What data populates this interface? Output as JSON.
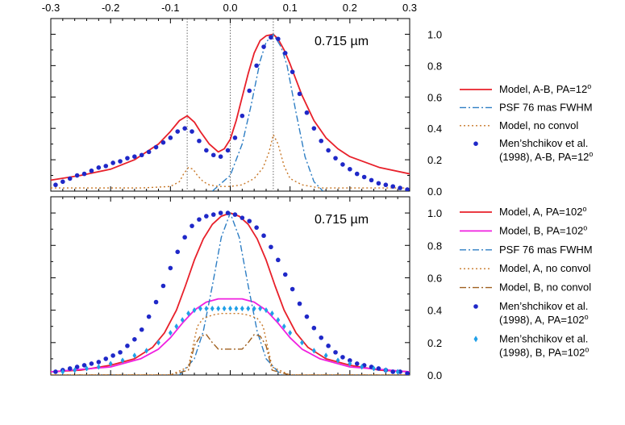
{
  "chart_data": [
    {
      "type": "line",
      "annotation": "0.715 µm",
      "xlim": [
        -0.3,
        0.3
      ],
      "ylim": [
        0.0,
        1.1
      ],
      "x_ticks": [
        "-0.3",
        "-0.2",
        "-0.1",
        "0.0",
        "0.1",
        "0.2",
        "0.3"
      ],
      "y_ticks": [
        "0.0",
        "0.2",
        "0.4",
        "0.6",
        "0.8",
        "1.0"
      ],
      "vlines": [
        -0.072,
        0.0,
        0.072
      ],
      "series": [
        {
          "name": "Model, A-B, PA=12",
          "name_sup": "o",
          "style": "solid",
          "color": "#e8202a",
          "x": [
            -0.3,
            -0.25,
            -0.2,
            -0.16,
            -0.12,
            -0.1,
            -0.085,
            -0.072,
            -0.06,
            -0.05,
            -0.035,
            -0.02,
            -0.01,
            0.0,
            0.01,
            0.02,
            0.03,
            0.04,
            0.05,
            0.06,
            0.072,
            0.08,
            0.09,
            0.1,
            0.11,
            0.12,
            0.14,
            0.16,
            0.18,
            0.2,
            0.25,
            0.3
          ],
          "y": [
            0.07,
            0.1,
            0.14,
            0.2,
            0.3,
            0.38,
            0.45,
            0.48,
            0.44,
            0.38,
            0.3,
            0.25,
            0.27,
            0.33,
            0.45,
            0.6,
            0.75,
            0.88,
            0.96,
            0.99,
            1.0,
            0.97,
            0.9,
            0.81,
            0.71,
            0.61,
            0.45,
            0.34,
            0.27,
            0.22,
            0.15,
            0.11
          ]
        },
        {
          "name": "PSF 76 mas FWHM",
          "style": "dashdot",
          "color": "#2e7ec4",
          "x": [
            -0.03,
            0.0,
            0.02,
            0.035,
            0.05,
            0.06,
            0.072,
            0.085,
            0.095,
            0.11,
            0.125,
            0.14,
            0.155
          ],
          "y": [
            0.0,
            0.1,
            0.3,
            0.55,
            0.83,
            0.95,
            1.0,
            0.92,
            0.8,
            0.5,
            0.22,
            0.06,
            0.0
          ]
        },
        {
          "name": "Model, no convol",
          "style": "dotted",
          "color": "#c87828",
          "x": [
            -0.3,
            -0.15,
            -0.1,
            -0.085,
            -0.078,
            -0.07,
            -0.062,
            -0.055,
            -0.045,
            -0.035,
            -0.02,
            0.0,
            0.02,
            0.04,
            0.055,
            0.065,
            0.072,
            0.08,
            0.09,
            0.1,
            0.12,
            0.15,
            0.3
          ],
          "y": [
            0.02,
            0.02,
            0.03,
            0.06,
            0.11,
            0.15,
            0.14,
            0.1,
            0.06,
            0.04,
            0.03,
            0.03,
            0.04,
            0.08,
            0.15,
            0.25,
            0.36,
            0.3,
            0.16,
            0.08,
            0.04,
            0.02,
            0.02
          ]
        },
        {
          "name": "Men'shchikov et al. (1998), A-B, PA=12",
          "name_lines": [
            "Men’shchikov et al.",
            "(1998), A-B, PA=12"
          ],
          "name_sup": "o",
          "style": "dots",
          "color": "#1f28c8",
          "x": [
            -0.292,
            -0.28,
            -0.268,
            -0.256,
            -0.244,
            -0.232,
            -0.22,
            -0.208,
            -0.196,
            -0.184,
            -0.172,
            -0.16,
            -0.148,
            -0.136,
            -0.124,
            -0.112,
            -0.1,
            -0.088,
            -0.076,
            -0.064,
            -0.052,
            -0.04,
            -0.028,
            -0.016,
            -0.004,
            0.008,
            0.02,
            0.032,
            0.044,
            0.056,
            0.068,
            0.08,
            0.092,
            0.104,
            0.116,
            0.128,
            0.14,
            0.152,
            0.164,
            0.176,
            0.188,
            0.2,
            0.212,
            0.224,
            0.236,
            0.248,
            0.26,
            0.272,
            0.284,
            0.296
          ],
          "y": [
            0.04,
            0.06,
            0.08,
            0.1,
            0.11,
            0.13,
            0.15,
            0.16,
            0.18,
            0.19,
            0.21,
            0.22,
            0.23,
            0.25,
            0.28,
            0.31,
            0.34,
            0.38,
            0.4,
            0.38,
            0.32,
            0.26,
            0.23,
            0.22,
            0.26,
            0.34,
            0.48,
            0.64,
            0.8,
            0.92,
            0.98,
            0.97,
            0.88,
            0.76,
            0.62,
            0.5,
            0.4,
            0.32,
            0.26,
            0.21,
            0.17,
            0.14,
            0.11,
            0.09,
            0.07,
            0.05,
            0.04,
            0.03,
            0.02,
            0.01
          ]
        }
      ]
    },
    {
      "type": "line",
      "annotation": "0.715 µm",
      "xlim": [
        -0.3,
        0.3
      ],
      "ylim": [
        0.0,
        1.1
      ],
      "y_ticks": [
        "0.0",
        "0.2",
        "0.4",
        "0.6",
        "0.8",
        "1.0"
      ],
      "series": [
        {
          "name": "Model, A, PA=102",
          "name_sup": "o",
          "style": "solid",
          "color": "#e8202a",
          "x": [
            -0.3,
            -0.25,
            -0.2,
            -0.16,
            -0.13,
            -0.11,
            -0.09,
            -0.075,
            -0.06,
            -0.045,
            -0.03,
            -0.015,
            0.0,
            0.015,
            0.03,
            0.045,
            0.06,
            0.075,
            0.09,
            0.11,
            0.13,
            0.16,
            0.2,
            0.25,
            0.3
          ],
          "y": [
            0.02,
            0.03,
            0.06,
            0.1,
            0.17,
            0.26,
            0.4,
            0.55,
            0.71,
            0.84,
            0.93,
            0.98,
            1.0,
            0.98,
            0.93,
            0.84,
            0.71,
            0.55,
            0.4,
            0.26,
            0.17,
            0.1,
            0.06,
            0.03,
            0.02
          ]
        },
        {
          "name": "Model, B, PA=102",
          "name_sup": "o",
          "style": "solid",
          "color": "#f020e0",
          "x": [
            -0.3,
            -0.2,
            -0.15,
            -0.12,
            -0.1,
            -0.08,
            -0.06,
            -0.04,
            -0.02,
            0.0,
            0.02,
            0.04,
            0.06,
            0.08,
            0.1,
            0.12,
            0.15,
            0.2,
            0.3
          ],
          "y": [
            0.02,
            0.05,
            0.1,
            0.16,
            0.23,
            0.32,
            0.4,
            0.45,
            0.47,
            0.47,
            0.47,
            0.45,
            0.4,
            0.32,
            0.23,
            0.16,
            0.1,
            0.05,
            0.02
          ]
        },
        {
          "name": "PSF 76 mas FWHM",
          "style": "dashdot",
          "color": "#2e7ec4",
          "x": [
            -0.085,
            -0.06,
            -0.045,
            -0.03,
            -0.015,
            0.0,
            0.015,
            0.03,
            0.045,
            0.06,
            0.085
          ],
          "y": [
            0.0,
            0.1,
            0.27,
            0.55,
            0.85,
            1.0,
            0.85,
            0.55,
            0.27,
            0.1,
            0.0
          ]
        },
        {
          "name": "Model, A, no convol",
          "style": "dotted",
          "color": "#c87828",
          "x": [
            -0.3,
            -0.1,
            -0.07,
            -0.055,
            -0.045,
            -0.03,
            -0.015,
            0.0,
            0.015,
            0.03,
            0.045,
            0.055,
            0.07,
            0.1,
            0.3
          ],
          "y": [
            0.0,
            0.0,
            0.05,
            0.3,
            0.35,
            0.37,
            0.38,
            0.38,
            0.38,
            0.37,
            0.35,
            0.3,
            0.05,
            0.0,
            0.0
          ]
        },
        {
          "name": "Model, B, no convol",
          "style": "dashdot",
          "color": "#a06020",
          "x": [
            -0.3,
            -0.1,
            -0.07,
            -0.06,
            -0.05,
            -0.04,
            -0.03,
            -0.02,
            0.0,
            0.02,
            0.03,
            0.04,
            0.05,
            0.06,
            0.07,
            0.1,
            0.3
          ],
          "y": [
            0.0,
            0.0,
            0.03,
            0.18,
            0.24,
            0.25,
            0.2,
            0.16,
            0.16,
            0.16,
            0.2,
            0.25,
            0.24,
            0.18,
            0.03,
            0.0,
            0.0
          ]
        },
        {
          "name": "Men'shchikov et al. (1998), A, PA=102",
          "name_lines": [
            "Men’shchikov et al.",
            "(1998), A, PA=102"
          ],
          "name_sup": "o",
          "style": "dots",
          "color": "#1f28c8",
          "x": [
            -0.292,
            -0.28,
            -0.268,
            -0.256,
            -0.244,
            -0.232,
            -0.22,
            -0.208,
            -0.196,
            -0.184,
            -0.172,
            -0.16,
            -0.148,
            -0.136,
            -0.124,
            -0.112,
            -0.1,
            -0.088,
            -0.076,
            -0.064,
            -0.052,
            -0.04,
            -0.028,
            -0.016,
            -0.004,
            0.008,
            0.02,
            0.032,
            0.044,
            0.056,
            0.068,
            0.08,
            0.092,
            0.104,
            0.116,
            0.128,
            0.14,
            0.152,
            0.164,
            0.176,
            0.188,
            0.2,
            0.212,
            0.224,
            0.236,
            0.248,
            0.26,
            0.272,
            0.284,
            0.296
          ],
          "y": [
            0.02,
            0.03,
            0.04,
            0.05,
            0.06,
            0.07,
            0.08,
            0.1,
            0.12,
            0.14,
            0.18,
            0.22,
            0.28,
            0.36,
            0.45,
            0.55,
            0.66,
            0.76,
            0.85,
            0.92,
            0.96,
            0.98,
            0.99,
            1.0,
            1.0,
            0.99,
            0.97,
            0.95,
            0.91,
            0.86,
            0.79,
            0.71,
            0.62,
            0.53,
            0.44,
            0.36,
            0.29,
            0.23,
            0.18,
            0.14,
            0.11,
            0.09,
            0.07,
            0.06,
            0.05,
            0.04,
            0.03,
            0.02,
            0.02,
            0.01
          ]
        },
        {
          "name": "Men'shchikov et al. (1998), B, PA=102",
          "name_lines": [
            "Men’shchikov et al.",
            "(1998), B, PA=102"
          ],
          "name_sup": "o",
          "style": "diamonds",
          "color": "#20a0e8",
          "x": [
            -0.28,
            -0.26,
            -0.24,
            -0.22,
            -0.2,
            -0.18,
            -0.16,
            -0.14,
            -0.12,
            -0.1,
            -0.09,
            -0.08,
            -0.07,
            -0.06,
            -0.05,
            -0.04,
            -0.03,
            -0.02,
            -0.01,
            0.0,
            0.01,
            0.02,
            0.03,
            0.04,
            0.05,
            0.06,
            0.07,
            0.08,
            0.09,
            0.1,
            0.12,
            0.14,
            0.16,
            0.18,
            0.2,
            0.22,
            0.24,
            0.26,
            0.28
          ],
          "y": [
            0.02,
            0.03,
            0.04,
            0.05,
            0.07,
            0.09,
            0.12,
            0.15,
            0.2,
            0.26,
            0.3,
            0.34,
            0.38,
            0.4,
            0.41,
            0.41,
            0.41,
            0.41,
            0.41,
            0.41,
            0.41,
            0.41,
            0.41,
            0.41,
            0.41,
            0.4,
            0.38,
            0.34,
            0.3,
            0.26,
            0.2,
            0.15,
            0.12,
            0.09,
            0.07,
            0.05,
            0.04,
            0.03,
            0.02
          ]
        }
      ]
    }
  ]
}
